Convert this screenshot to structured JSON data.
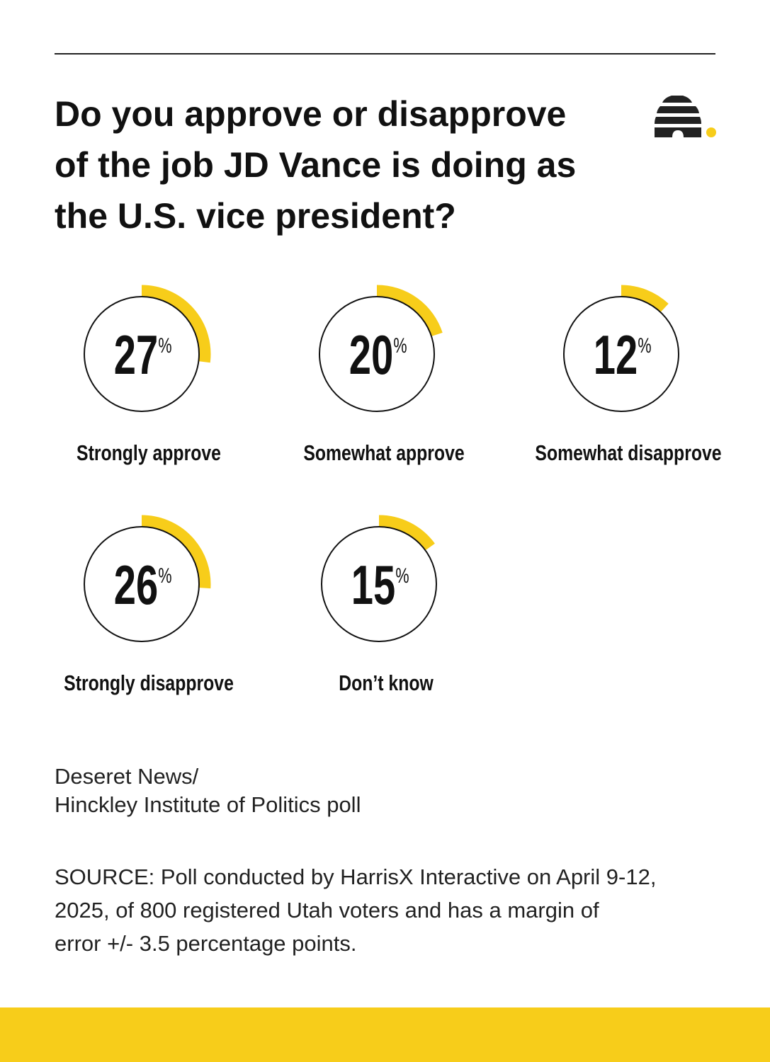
{
  "chart_data": {
    "type": "radial",
    "title": [
      "Do you approve or disapprove",
      "of the job JD Vance is doing as",
      "the U.S. vice president?"
    ],
    "categories": [
      "Strongly approve",
      "Somewhat approve",
      "Somewhat disapprove",
      "Strongly disapprove",
      "Don’t know"
    ],
    "values": [
      27,
      20,
      12,
      26,
      15
    ],
    "unit": "%",
    "ylim": [
      0,
      100
    ],
    "color": "#f7cd1a"
  },
  "credit": [
    "Deseret News/",
    "Hinckley Institute of Politics poll"
  ],
  "source": [
    "SOURCE: Poll conducted by HarrisX Interactive on April 9-12,",
    "2025, of 800 registered Utah voters and has a margin of",
    "error +/- 3.5 percentage points."
  ]
}
